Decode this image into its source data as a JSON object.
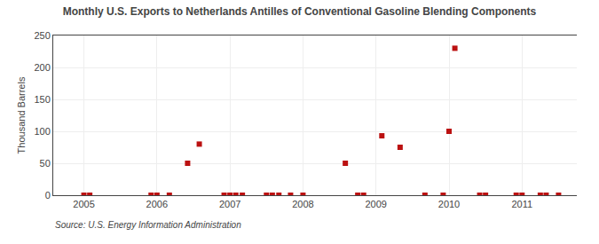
{
  "chart_data": {
    "type": "scatter",
    "title": "Monthly U.S. Exports to Netherlands Antilles of Conventional Gasoline Blending Components",
    "ylabel": "Thousand Barrels",
    "annotations": [
      "Source: U.S. Energy Information Administration"
    ],
    "color": "#bb1111",
    "marker": "square",
    "grid": true,
    "xlim": [
      2004.58,
      2011.75
    ],
    "xticks": [
      2005,
      2006,
      2007,
      2008,
      2009,
      2010,
      2011
    ],
    "ylim": [
      0,
      250
    ],
    "yticks": [
      0,
      50,
      100,
      150,
      200,
      250
    ],
    "x": [
      2005.0,
      2005.08,
      2005.92,
      2006.0,
      2006.17,
      2006.42,
      2006.58,
      2006.92,
      2007.0,
      2007.08,
      2007.17,
      2007.5,
      2007.58,
      2007.67,
      2007.83,
      2008.0,
      2008.58,
      2008.75,
      2008.83,
      2009.08,
      2009.33,
      2009.67,
      2009.92,
      2010.0,
      2010.08,
      2010.42,
      2010.5,
      2010.92,
      2011.0,
      2011.25,
      2011.33,
      2011.5
    ],
    "values": [
      0,
      0,
      0,
      0,
      0,
      50,
      80,
      0,
      0,
      0,
      0,
      0,
      0,
      0,
      0,
      0,
      50,
      0,
      0,
      93,
      75,
      0,
      0,
      100,
      230,
      0,
      0,
      0,
      0,
      0,
      0,
      0
    ]
  }
}
